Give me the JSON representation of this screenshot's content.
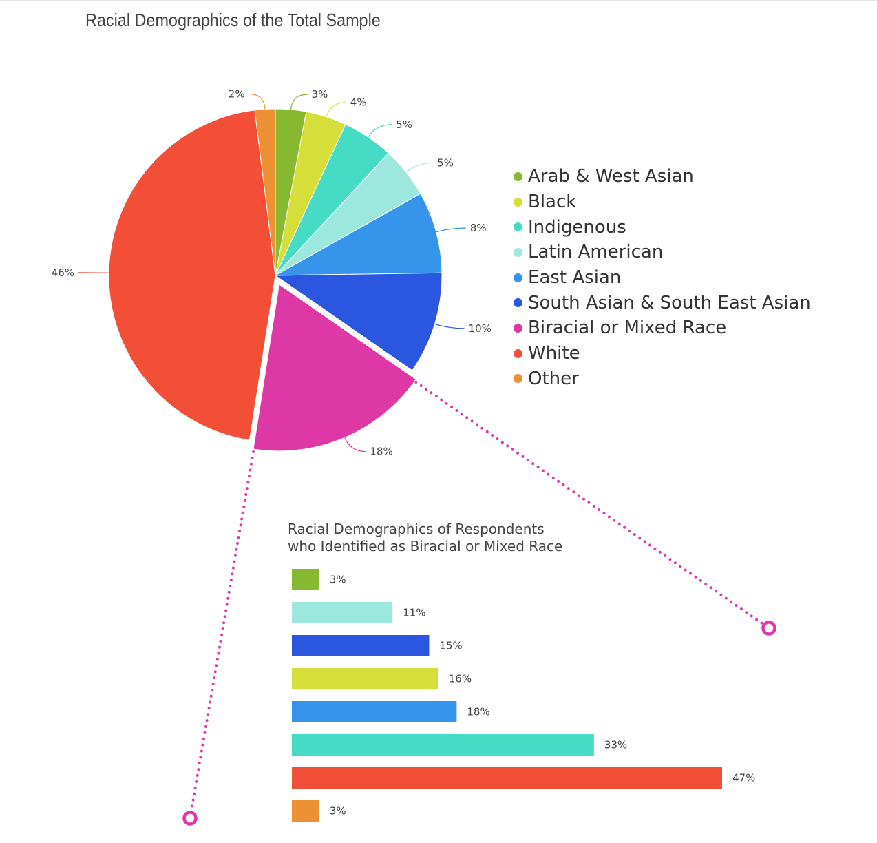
{
  "title": "Racial Demographics of the Total Sample",
  "colors": {
    "arab": "#86b830",
    "black": "#d6df3a",
    "indigenous": "#45dbc5",
    "latin": "#9de8de",
    "east_asian": "#3694ea",
    "south_asian": "#2b57e0",
    "biracial": "#de38a6",
    "white": "#f34e36",
    "other": "#ec9134",
    "connector": "#dd38ad"
  },
  "chart_data": [
    {
      "type": "pie",
      "title": "Racial Demographics of the Total Sample",
      "legend_position": "right",
      "exploded": "Biracial or Mixed Race",
      "slices": [
        {
          "label": "Arab & West Asian",
          "value": 3,
          "display": "3%",
          "color": "#86b830"
        },
        {
          "label": "Black",
          "value": 4,
          "display": "4%",
          "color": "#d6df3a"
        },
        {
          "label": "Indigenous",
          "value": 5,
          "display": "5%",
          "color": "#45dbc5"
        },
        {
          "label": "Latin American",
          "value": 5,
          "display": "5%",
          "color": "#9de8de"
        },
        {
          "label": "East Asian",
          "value": 8,
          "display": "8%",
          "color": "#3694ea"
        },
        {
          "label": "South Asian & South East Asian",
          "value": 10,
          "display": "10%",
          "color": "#2b57e0"
        },
        {
          "label": "Biracial or Mixed Race",
          "value": 18,
          "display": "18%",
          "color": "#de38a6"
        },
        {
          "label": "White",
          "value": 46,
          "display": "46%",
          "color": "#f34e36"
        },
        {
          "label": "Other",
          "value": 2,
          "display": "2%",
          "color": "#ec9134"
        }
      ]
    },
    {
      "type": "bar",
      "orientation": "horizontal",
      "title_lines": [
        "Racial Demographics of Respondents",
        "who Identified as Biracial or Mixed Race"
      ],
      "xlim": [
        0,
        47
      ],
      "bars": [
        {
          "value": 3,
          "display": "3%",
          "color": "#86b830"
        },
        {
          "value": 11,
          "display": "11%",
          "color": "#9de8de"
        },
        {
          "value": 15,
          "display": "15%",
          "color": "#2b57e0"
        },
        {
          "value": 16,
          "display": "16%",
          "color": "#d6df3a"
        },
        {
          "value": 18,
          "display": "18%",
          "color": "#3694ea"
        },
        {
          "value": 33,
          "display": "33%",
          "color": "#45dbc5"
        },
        {
          "value": 47,
          "display": "47%",
          "color": "#f34e36"
        },
        {
          "value": 3,
          "display": "3%",
          "color": "#ec9134"
        }
      ]
    }
  ]
}
